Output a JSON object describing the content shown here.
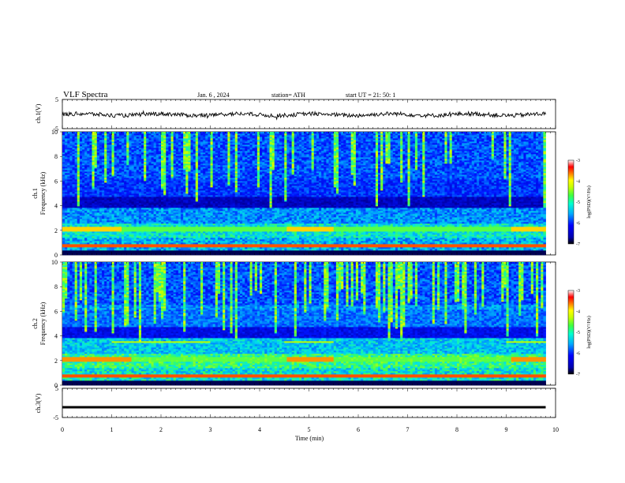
{
  "header": {
    "title": "VLF  Spectra",
    "date": "Jan. 6  , 2024",
    "station": "station= ATH",
    "start": "start  UT  =    21: 50: 1"
  },
  "chart_data": [
    {
      "type": "line",
      "ylabel": "ch.1(V)",
      "ylim": [
        -5,
        5
      ],
      "yticks": [
        "5",
        "-5"
      ],
      "xlim": [
        0,
        10
      ],
      "note": "noisy trace around ~0 V"
    },
    {
      "type": "heatmap",
      "ylabel_top": "ch.1",
      "ylabel": "Frequency (kHz)",
      "ylim": [
        0,
        10
      ],
      "yticks": [
        "10",
        "8",
        "6",
        "4",
        "2",
        "0"
      ],
      "xlim": [
        0,
        9.8
      ],
      "colorbar": {
        "label": "log(PSD)(V²/Hz)",
        "range": [
          -7,
          -3
        ],
        "ticks": [
          "-3",
          "-4",
          "-5",
          "-6",
          "-7"
        ]
      }
    },
    {
      "type": "heatmap",
      "ylabel_top": "ch.2",
      "ylabel": "Frequency (kHz)",
      "ylim": [
        0,
        10
      ],
      "yticks": [
        "10",
        "8",
        "6",
        "4",
        "2",
        "0"
      ],
      "xlim": [
        0,
        9.8
      ],
      "colorbar": {
        "label": "log(PSD)(V²/Hz)",
        "range": [
          -7,
          -3
        ],
        "ticks": [
          "-3",
          "-4",
          "-5",
          "-6",
          "-7"
        ]
      }
    },
    {
      "type": "line",
      "ylabel": "ch.3(V)",
      "ylim": [
        -5,
        5
      ],
      "yticks": [
        "5",
        "-5"
      ],
      "xlim": [
        0,
        10
      ],
      "note": "flat trace at about -1.5 V"
    }
  ],
  "xaxis": {
    "label": "Time  (min)",
    "ticks": [
      "0",
      "1",
      "2",
      "3",
      "4",
      "5",
      "6",
      "7",
      "8",
      "9",
      "10"
    ]
  },
  "colors": {
    "colormap": [
      "#00007a",
      "#0000ff",
      "#0088ff",
      "#00e0ff",
      "#40ff80",
      "#b0ff00",
      "#ffff00",
      "#ff8000",
      "#ff0000",
      "#ffffff"
    ]
  }
}
